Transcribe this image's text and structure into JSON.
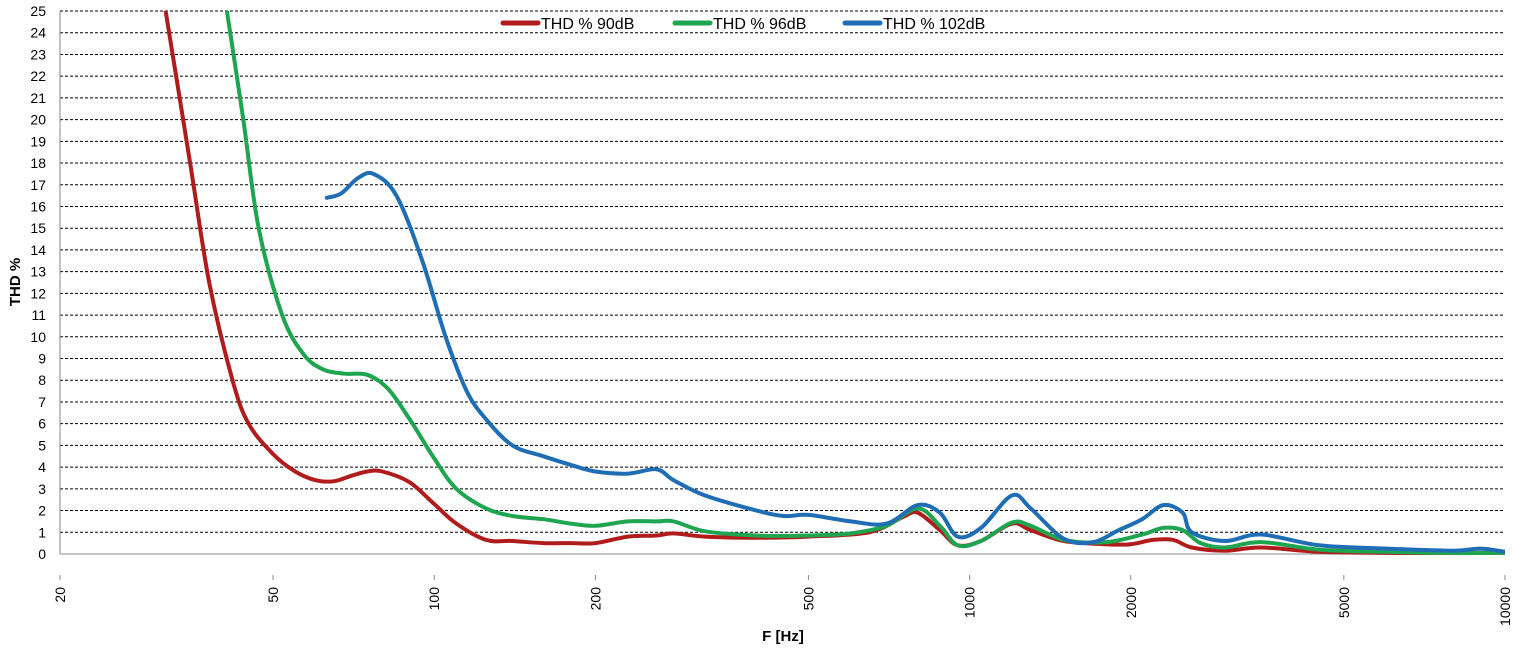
{
  "chart_data": {
    "type": "line",
    "title": "",
    "xlabel": "F [Hz]",
    "ylabel": "THD %",
    "x_scale": "log",
    "xlim": [
      20,
      10000
    ],
    "ylim": [
      0,
      25
    ],
    "x_ticks": [
      "20",
      "50",
      "100",
      "200",
      "500",
      "1000",
      "2000",
      "5000",
      "10000"
    ],
    "y_ticks": [
      "0",
      "1",
      "2",
      "3",
      "4",
      "5",
      "6",
      "7",
      "8",
      "9",
      "10",
      "11",
      "12",
      "13",
      "14",
      "15",
      "16",
      "17",
      "18",
      "19",
      "20",
      "21",
      "22",
      "23",
      "24",
      "25"
    ],
    "grid": true,
    "legend_position": "top-center",
    "series": [
      {
        "name": "THD % 90dB",
        "color": "#b01c1c",
        "points": [
          [
            31.5,
            25
          ],
          [
            35,
            18
          ],
          [
            38,
            12.5
          ],
          [
            42,
            8
          ],
          [
            45,
            6
          ],
          [
            50,
            4.6
          ],
          [
            55,
            3.8
          ],
          [
            60,
            3.4
          ],
          [
            65,
            3.35
          ],
          [
            70,
            3.6
          ],
          [
            75,
            3.8
          ],
          [
            80,
            3.8
          ],
          [
            90,
            3.3
          ],
          [
            100,
            2.3
          ],
          [
            110,
            1.4
          ],
          [
            125,
            0.65
          ],
          [
            140,
            0.6
          ],
          [
            160,
            0.5
          ],
          [
            180,
            0.5
          ],
          [
            200,
            0.5
          ],
          [
            230,
            0.8
          ],
          [
            260,
            0.85
          ],
          [
            280,
            0.95
          ],
          [
            320,
            0.8
          ],
          [
            400,
            0.75
          ],
          [
            500,
            0.8
          ],
          [
            650,
            1.0
          ],
          [
            750,
            1.7
          ],
          [
            800,
            1.9
          ],
          [
            880,
            1.1
          ],
          [
            950,
            0.4
          ],
          [
            1050,
            0.6
          ],
          [
            1200,
            1.4
          ],
          [
            1300,
            1.1
          ],
          [
            1500,
            0.6
          ],
          [
            1800,
            0.45
          ],
          [
            2000,
            0.45
          ],
          [
            2200,
            0.65
          ],
          [
            2400,
            0.65
          ],
          [
            2600,
            0.3
          ],
          [
            3000,
            0.15
          ],
          [
            3500,
            0.3
          ],
          [
            4500,
            0.1
          ],
          [
            6000,
            0.05
          ],
          [
            8000,
            0.05
          ],
          [
            10000,
            0.05
          ]
        ]
      },
      {
        "name": "THD % 96dB",
        "color": "#1ea550",
        "points": [
          [
            41,
            25
          ],
          [
            44,
            20
          ],
          [
            47,
            15
          ],
          [
            52,
            11
          ],
          [
            57,
            9.2
          ],
          [
            62,
            8.5
          ],
          [
            68,
            8.3
          ],
          [
            75,
            8.25
          ],
          [
            82,
            7.6
          ],
          [
            90,
            6.2
          ],
          [
            100,
            4.4
          ],
          [
            110,
            3.0
          ],
          [
            125,
            2.1
          ],
          [
            140,
            1.75
          ],
          [
            160,
            1.6
          ],
          [
            180,
            1.4
          ],
          [
            200,
            1.3
          ],
          [
            230,
            1.5
          ],
          [
            260,
            1.5
          ],
          [
            280,
            1.5
          ],
          [
            320,
            1.05
          ],
          [
            400,
            0.85
          ],
          [
            500,
            0.85
          ],
          [
            600,
            0.95
          ],
          [
            700,
            1.3
          ],
          [
            800,
            2.1
          ],
          [
            880,
            1.3
          ],
          [
            950,
            0.4
          ],
          [
            1050,
            0.6
          ],
          [
            1200,
            1.45
          ],
          [
            1300,
            1.3
          ],
          [
            1500,
            0.65
          ],
          [
            1800,
            0.55
          ],
          [
            2100,
            0.9
          ],
          [
            2300,
            1.2
          ],
          [
            2500,
            1.1
          ],
          [
            2700,
            0.5
          ],
          [
            3000,
            0.3
          ],
          [
            3500,
            0.55
          ],
          [
            4500,
            0.2
          ],
          [
            6000,
            0.1
          ],
          [
            8000,
            0.05
          ],
          [
            10000,
            0.05
          ]
        ]
      },
      {
        "name": "THD % 102dB",
        "color": "#1f6eb5",
        "points": [
          [
            63,
            16.4
          ],
          [
            67,
            16.6
          ],
          [
            72,
            17.3
          ],
          [
            77,
            17.5
          ],
          [
            85,
            16.5
          ],
          [
            95,
            13.5
          ],
          [
            105,
            10
          ],
          [
            115,
            7.5
          ],
          [
            125,
            6.2
          ],
          [
            140,
            5.0
          ],
          [
            160,
            4.5
          ],
          [
            180,
            4.1
          ],
          [
            200,
            3.8
          ],
          [
            230,
            3.7
          ],
          [
            260,
            3.9
          ],
          [
            280,
            3.4
          ],
          [
            320,
            2.7
          ],
          [
            400,
            2.0
          ],
          [
            450,
            1.75
          ],
          [
            500,
            1.8
          ],
          [
            600,
            1.5
          ],
          [
            700,
            1.4
          ],
          [
            800,
            2.25
          ],
          [
            880,
            1.9
          ],
          [
            950,
            0.8
          ],
          [
            1050,
            1.2
          ],
          [
            1200,
            2.7
          ],
          [
            1300,
            2.1
          ],
          [
            1500,
            0.7
          ],
          [
            1700,
            0.55
          ],
          [
            1900,
            1.1
          ],
          [
            2100,
            1.6
          ],
          [
            2300,
            2.25
          ],
          [
            2500,
            1.9
          ],
          [
            2600,
            1.0
          ],
          [
            3000,
            0.6
          ],
          [
            3500,
            0.9
          ],
          [
            4500,
            0.4
          ],
          [
            6000,
            0.25
          ],
          [
            8000,
            0.15
          ],
          [
            9000,
            0.25
          ],
          [
            10000,
            0.1
          ]
        ]
      }
    ]
  }
}
